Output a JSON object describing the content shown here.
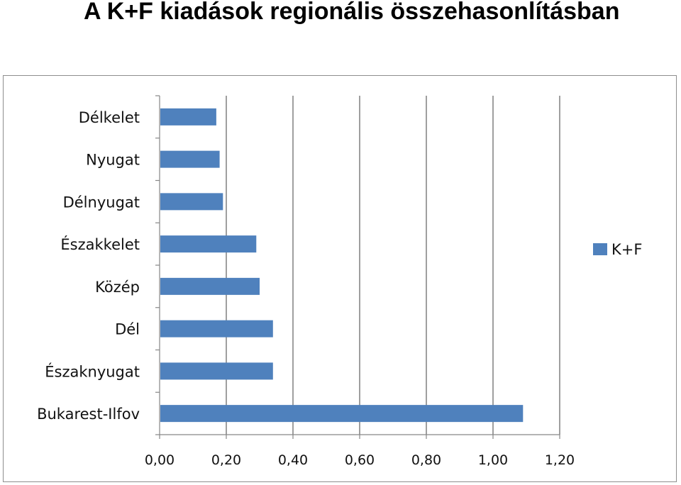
{
  "title": "A K+F kiadások regionális összehasonlításban",
  "chart_data": {
    "type": "bar",
    "orientation": "horizontal",
    "categories": [
      "Délkelet",
      "Nyugat",
      "Délnyugat",
      "Északkelet",
      "Közép",
      "Dél",
      "Északnyugat",
      "Bukarest-Ilfov"
    ],
    "series": [
      {
        "name": "K+F",
        "color": "#4f81bd",
        "values": [
          0.17,
          0.18,
          0.19,
          0.29,
          0.3,
          0.34,
          0.34,
          1.09
        ]
      }
    ],
    "x_ticks": [
      "0,00",
      "0,20",
      "0,40",
      "0,60",
      "0,80",
      "1,00",
      "1,20"
    ],
    "xlim": [
      0,
      1.2
    ],
    "grid": "vertical major gridlines",
    "legend": "right"
  }
}
